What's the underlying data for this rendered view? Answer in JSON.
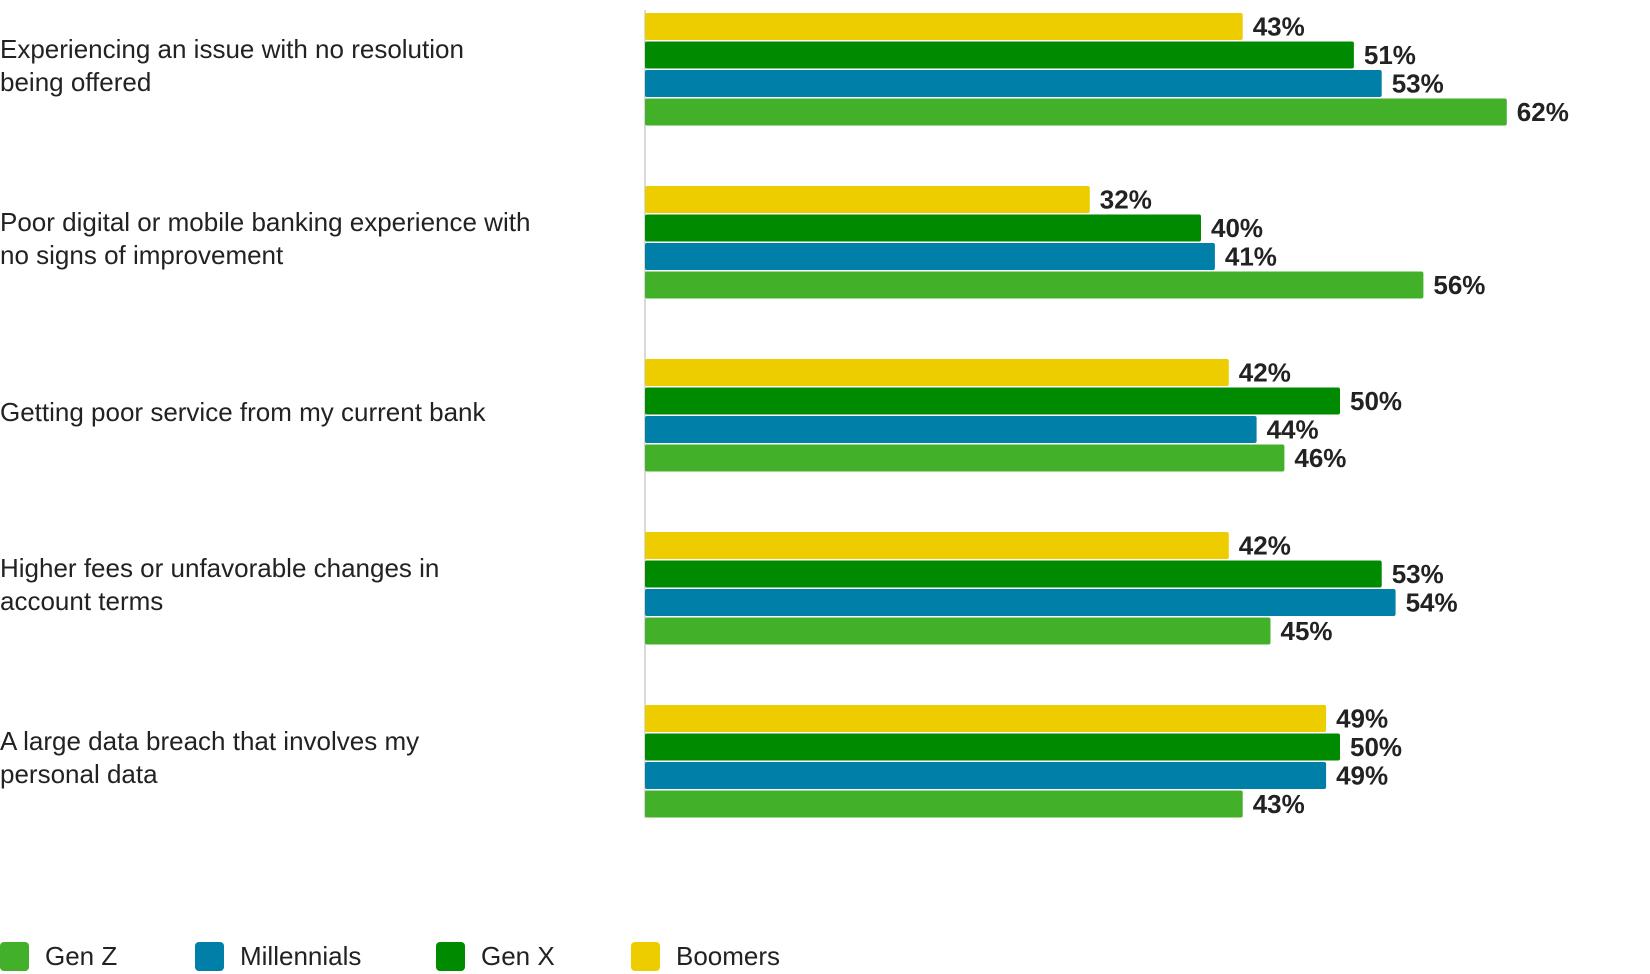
{
  "chart_data": {
    "type": "bar",
    "orientation": "horizontal",
    "categories": [
      "Experiencing an issue with no resolution\nbeing offered",
      "Poor digital or mobile banking experience with\nno signs of improvement",
      "Getting poor service from my current bank",
      "Higher fees or unfavorable changes in\naccount terms",
      "A large data breach that involves my\npersonal data"
    ],
    "series": [
      {
        "name": "Boomers",
        "color": "#EDCD00",
        "values": [
          43,
          32,
          42,
          42,
          49
        ]
      },
      {
        "name": "Gen X",
        "color": "#008A00",
        "values": [
          51,
          40,
          50,
          53,
          50
        ]
      },
      {
        "name": "Millennials",
        "color": "#0080A8",
        "values": [
          53,
          41,
          44,
          54,
          49
        ]
      },
      {
        "name": "Gen Z",
        "color": "#43B02A",
        "values": [
          62,
          56,
          46,
          45,
          43
        ]
      }
    ],
    "value_suffix": "%",
    "xlim": [
      0,
      100
    ],
    "grid": false,
    "legend_position": "bottom-left",
    "legend_order": [
      "Gen Z",
      "Millennials",
      "Gen X",
      "Boomers"
    ]
  }
}
